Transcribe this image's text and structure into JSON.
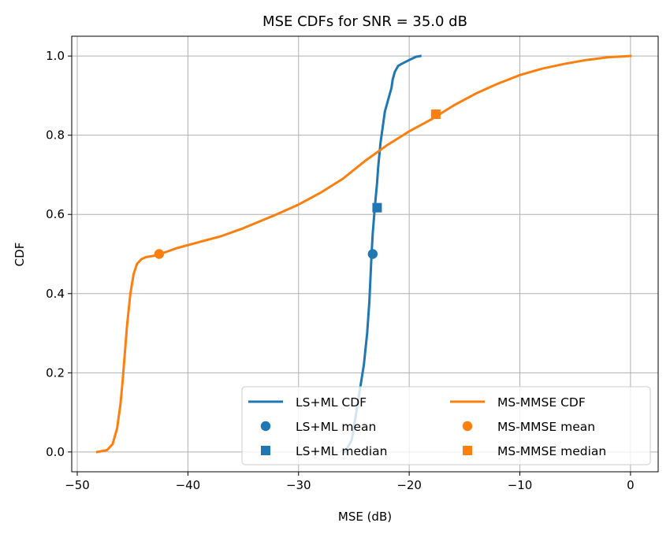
{
  "chart_data": {
    "type": "line",
    "title": "MSE CDFs for SNR = 35.0 dB",
    "xlabel": "MSE (dB)",
    "ylabel": "CDF",
    "xlim": [
      -50.5,
      2.5
    ],
    "ylim": [
      -0.05,
      1.05
    ],
    "xticks": [
      -50,
      -40,
      -30,
      -20,
      -10,
      0
    ],
    "xtick_labels": [
      "−50",
      "−40",
      "−30",
      "−20",
      "−10",
      "0"
    ],
    "yticks": [
      0.0,
      0.2,
      0.4,
      0.6,
      0.8,
      1.0
    ],
    "ytick_labels": [
      "0.0",
      "0.2",
      "0.4",
      "0.6",
      "0.8",
      "1.0"
    ],
    "grid": true,
    "legend_position": "lower-right",
    "colors": {
      "ls_ml": "#1f77b4",
      "ms_mmse": "#ff7f0e"
    },
    "series": [
      {
        "name": "LS+ML CDF",
        "kind": "line",
        "color": "#1f77b4",
        "x": [
          -25.8,
          -25.2,
          -24.9,
          -24.5,
          -24.1,
          -23.8,
          -23.6,
          -23.5,
          -23.4,
          -23.3,
          -23.1,
          -22.9,
          -22.8,
          -22.6,
          -22.4,
          -22.2,
          -22.0,
          -21.8,
          -21.6,
          -21.5,
          -21.3,
          -21.0,
          -20.7,
          -20.0,
          -19.4,
          -19.0
        ],
        "y": [
          0.0,
          0.03,
          0.08,
          0.15,
          0.22,
          0.3,
          0.38,
          0.44,
          0.5,
          0.55,
          0.62,
          0.68,
          0.72,
          0.78,
          0.82,
          0.86,
          0.88,
          0.9,
          0.92,
          0.94,
          0.96,
          0.975,
          0.98,
          0.99,
          0.998,
          1.0
        ]
      },
      {
        "name": "MS-MMSE CDF",
        "kind": "line",
        "color": "#ff7f0e",
        "x": [
          -48.2,
          -47.3,
          -46.8,
          -46.4,
          -46.1,
          -45.9,
          -45.7,
          -45.5,
          -45.2,
          -44.9,
          -44.6,
          -44.2,
          -43.8,
          -43.0,
          -42.5,
          -41.0,
          -39.0,
          -37.0,
          -35.0,
          -32.0,
          -30.0,
          -28.0,
          -26.0,
          -24.0,
          -22.0,
          -20.0,
          -18.0,
          -16.0,
          -14.0,
          -12.0,
          -10.0,
          -8.0,
          -6.0,
          -4.0,
          -2.0,
          0.0
        ],
        "y": [
          0.0,
          0.005,
          0.02,
          0.06,
          0.12,
          0.18,
          0.25,
          0.32,
          0.4,
          0.45,
          0.475,
          0.487,
          0.492,
          0.496,
          0.5,
          0.515,
          0.53,
          0.545,
          0.565,
          0.6,
          0.625,
          0.655,
          0.69,
          0.735,
          0.775,
          0.81,
          0.84,
          0.875,
          0.905,
          0.93,
          0.952,
          0.968,
          0.98,
          0.99,
          0.997,
          1.0
        ]
      },
      {
        "name": "LS+ML mean",
        "kind": "marker",
        "shape": "circle",
        "color": "#1f77b4",
        "x": [
          -23.3
        ],
        "y": [
          0.5
        ]
      },
      {
        "name": "MS-MMSE mean",
        "kind": "marker",
        "shape": "circle",
        "color": "#ff7f0e",
        "x": [
          -42.6
        ],
        "y": [
          0.5
        ]
      },
      {
        "name": "LS+ML median",
        "kind": "marker",
        "shape": "square",
        "color": "#1f77b4",
        "x": [
          -22.9
        ],
        "y": [
          0.617
        ]
      },
      {
        "name": "MS-MMSE median",
        "kind": "marker",
        "shape": "square",
        "color": "#ff7f0e",
        "x": [
          -17.6
        ],
        "y": [
          0.853
        ]
      }
    ],
    "legend": [
      {
        "label": "LS+ML CDF",
        "symbol": "line",
        "color": "#1f77b4"
      },
      {
        "label": "MS-MMSE CDF",
        "symbol": "line",
        "color": "#ff7f0e"
      },
      {
        "label": "LS+ML mean",
        "symbol": "circle",
        "color": "#1f77b4"
      },
      {
        "label": "MS-MMSE mean",
        "symbol": "circle",
        "color": "#ff7f0e"
      },
      {
        "label": "LS+ML median",
        "symbol": "square",
        "color": "#1f77b4"
      },
      {
        "label": "MS-MMSE median",
        "symbol": "square",
        "color": "#ff7f0e"
      }
    ]
  }
}
